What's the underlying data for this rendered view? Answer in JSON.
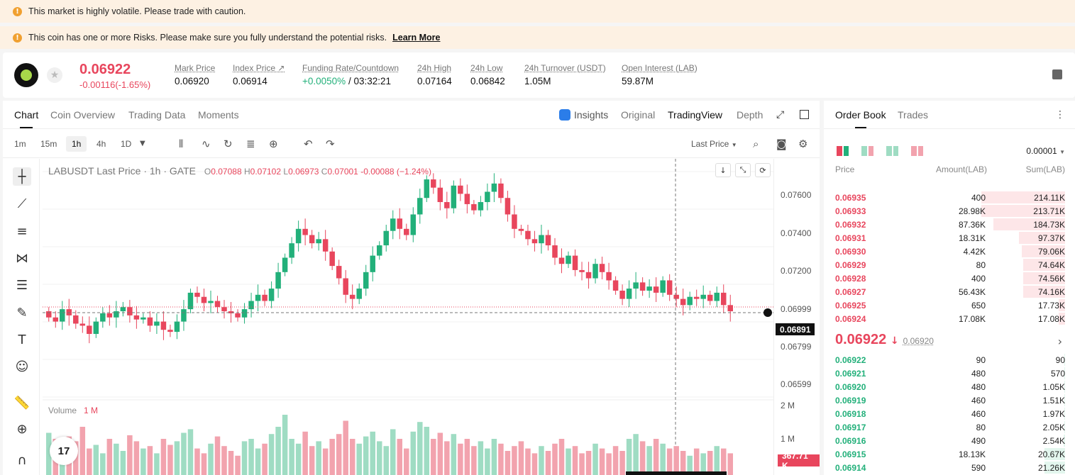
{
  "banners": [
    {
      "text": "This market is highly volatile. Please trade with caution."
    },
    {
      "text": "This coin has one or more Risks. Please make sure you fully understand the potential risks.",
      "link": "Learn More"
    }
  ],
  "ticker": {
    "last_price": "0.06922",
    "change": "-0.00116(-1.65%)",
    "stats": [
      {
        "label": "Mark Price",
        "value": "0.06920"
      },
      {
        "label": "Index Price ↗",
        "value": "0.06914"
      },
      {
        "label": "Funding Rate/Countdown",
        "value_green": "+0.0050%",
        "value": " / 03:32:21"
      },
      {
        "label": "24h High",
        "value": "0.07164"
      },
      {
        "label": "24h Low",
        "value": "0.06842"
      },
      {
        "label": "24h Turnover (USDT)",
        "value": "1.05M"
      },
      {
        "label": "Open Interest (LAB)",
        "value": "59.87M"
      }
    ]
  },
  "chart_tabs": [
    "Chart",
    "Coin Overview",
    "Trading Data",
    "Moments"
  ],
  "view_tabs": [
    "Insights",
    "Original",
    "TradingView",
    "Depth"
  ],
  "intervals": [
    "1m",
    "15m",
    "1h",
    "4h",
    "1D"
  ],
  "selected_interval": "1h",
  "price_type": "Last Price",
  "legend": {
    "symbol": "LABUSDT Last Price · 1h · GATE",
    "open_label": "O",
    "open": "0.07088",
    "high_label": "H",
    "high": "0.07102",
    "low_label": "L",
    "low": "0.06973",
    "close_label": "C",
    "close": "0.07001",
    "change": "-0.00088 (−1.24%)"
  },
  "y_axis": [
    "0.07600",
    "0.07400",
    "0.07200",
    "0.06999",
    "0.06799",
    "0.06599"
  ],
  "crosshair_price": "0.06891",
  "volume": {
    "label": "Volume",
    "value": "1 M",
    "axis": [
      "2 M",
      "1 M"
    ],
    "current": "367.71 K"
  },
  "colors": {
    "up": "#22b07a",
    "down": "#e8465d",
    "up_soft": "#9fdcc3",
    "down_soft": "#f2a3ae"
  },
  "chart_data": {
    "type": "candlestick",
    "ylim": [
      0.065,
      0.0767
    ],
    "close": [
      0.069,
      0.0688,
      0.0694,
      0.0691,
      0.0687,
      0.0686,
      0.0682,
      0.0688,
      0.0692,
      0.069,
      0.0693,
      0.0695,
      0.0691,
      0.0689,
      0.069,
      0.0686,
      0.0688,
      0.0684,
      0.0683,
      0.0688,
      0.0694,
      0.0702,
      0.07,
      0.0697,
      0.0698,
      0.0695,
      0.0693,
      0.0692,
      0.069,
      0.0694,
      0.0698,
      0.0701,
      0.0698,
      0.0704,
      0.0712,
      0.0719,
      0.0726,
      0.0733,
      0.073,
      0.0726,
      0.0728,
      0.0722,
      0.0715,
      0.0709,
      0.0701,
      0.0699,
      0.0704,
      0.0712,
      0.072,
      0.0725,
      0.0732,
      0.0738,
      0.0733,
      0.073,
      0.074,
      0.0748,
      0.0757,
      0.0753,
      0.0746,
      0.0743,
      0.0754,
      0.075,
      0.0745,
      0.0742,
      0.0746,
      0.0751,
      0.0755,
      0.0748,
      0.074,
      0.0733,
      0.0732,
      0.0728,
      0.0726,
      0.073,
      0.0725,
      0.0719,
      0.0716,
      0.072,
      0.0713,
      0.0712,
      0.0709,
      0.0716,
      0.0712,
      0.0708,
      0.0703,
      0.0699,
      0.0704,
      0.0707,
      0.0703,
      0.0705,
      0.0702,
      0.0708,
      0.0701,
      0.0699,
      0.0696,
      0.07,
      0.0699,
      0.0701,
      0.0698,
      0.0702,
      0.0696,
      0.0693
    ]
  },
  "volume_data": [
    35,
    30,
    15,
    32,
    28,
    40,
    22,
    25,
    18,
    30,
    26,
    20,
    33,
    28,
    22,
    24,
    18,
    30,
    25,
    28,
    35,
    38,
    22,
    18,
    26,
    32,
    24,
    20,
    16,
    28,
    30,
    22,
    26,
    34,
    40,
    50,
    30,
    26,
    36,
    24,
    28,
    22,
    30,
    34,
    45,
    30,
    26,
    32,
    36,
    28,
    24,
    38,
    30,
    22,
    36,
    44,
    40,
    30,
    35,
    28,
    34,
    26,
    30,
    24,
    28,
    22,
    30,
    26,
    20,
    24,
    28,
    22,
    18,
    24,
    20,
    26,
    30,
    22,
    24,
    18,
    20,
    26,
    22,
    18,
    24,
    20,
    30,
    34,
    28,
    24,
    30,
    26,
    22,
    24,
    20,
    16,
    22,
    18,
    20,
    24,
    22,
    18
  ],
  "orderbook": {
    "tabs": [
      "Order Book",
      "Trades"
    ],
    "precision": "0.00001",
    "columns": [
      "Price",
      "Amount(LAB)",
      "Sum(LAB)"
    ],
    "asks": [
      {
        "price": "0.06935",
        "amount": "400",
        "sum": "214.11K",
        "depth": 1.0
      },
      {
        "price": "0.06933",
        "amount": "28.98K",
        "sum": "213.71K",
        "depth": 0.998
      },
      {
        "price": "0.06932",
        "amount": "87.36K",
        "sum": "184.73K",
        "depth": 0.86
      },
      {
        "price": "0.06931",
        "amount": "18.31K",
        "sum": "97.37K",
        "depth": 0.55
      },
      {
        "price": "0.06930",
        "amount": "4.42K",
        "sum": "79.06K",
        "depth": 0.52
      },
      {
        "price": "0.06929",
        "amount": "80",
        "sum": "74.64K",
        "depth": 0.5
      },
      {
        "price": "0.06928",
        "amount": "400",
        "sum": "74.56K",
        "depth": 0.5
      },
      {
        "price": "0.06927",
        "amount": "56.43K",
        "sum": "74.16K",
        "depth": 0.5
      },
      {
        "price": "0.06925",
        "amount": "650",
        "sum": "17.73K",
        "depth": 0.08
      },
      {
        "price": "0.06924",
        "amount": "17.08K",
        "sum": "17.08K",
        "depth": 0.08
      }
    ],
    "mid_price": "0.06922",
    "mid_arrow": "↓",
    "mark": "0.06920",
    "bids": [
      {
        "price": "0.06922",
        "amount": "90",
        "sum": "90",
        "depth": 0.005
      },
      {
        "price": "0.06921",
        "amount": "480",
        "sum": "570",
        "depth": 0.01
      },
      {
        "price": "0.06920",
        "amount": "480",
        "sum": "1.05K",
        "depth": 0.01
      },
      {
        "price": "0.06919",
        "amount": "460",
        "sum": "1.51K",
        "depth": 0.01
      },
      {
        "price": "0.06918",
        "amount": "460",
        "sum": "1.97K",
        "depth": 0.01
      },
      {
        "price": "0.06917",
        "amount": "80",
        "sum": "2.05K",
        "depth": 0.01
      },
      {
        "price": "0.06916",
        "amount": "490",
        "sum": "2.54K",
        "depth": 0.02
      },
      {
        "price": "0.06915",
        "amount": "18.13K",
        "sum": "20.67K",
        "depth": 0.25
      },
      {
        "price": "0.06914",
        "amount": "590",
        "sum": "21.26K",
        "depth": 0.25
      }
    ]
  }
}
